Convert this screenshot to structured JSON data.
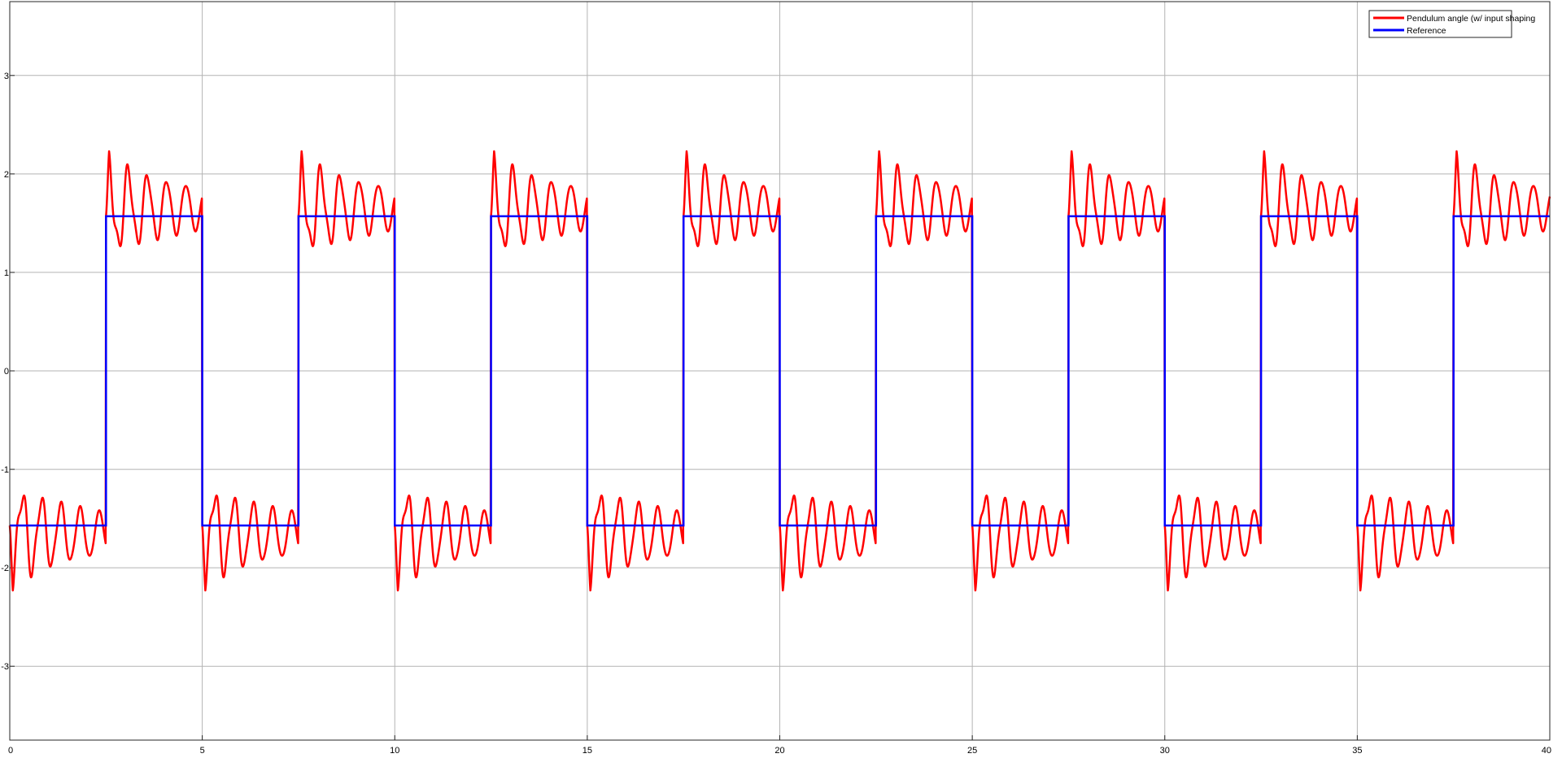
{
  "chart_data": {
    "type": "line",
    "xlim": [
      0,
      40
    ],
    "ylim": [
      -3.75,
      3.75
    ],
    "x_ticks": [
      0,
      5,
      10,
      15,
      20,
      25,
      30,
      35,
      40
    ],
    "y_ticks": [
      -3,
      -2,
      -1,
      0,
      1,
      2,
      3
    ],
    "grid": true,
    "legend_position": "top-right",
    "period": 5,
    "reference_amplitude": 1.5708,
    "series": [
      {
        "name": "Pendulum angle (w/ input shaping",
        "color": "#ff0000",
        "kind": "oscillatory response",
        "overshoot_peak": 0.4,
        "damping": 0.3,
        "oscillation_frequency_hz": 2.0
      },
      {
        "name": "Reference",
        "color": "#0000ff",
        "kind": "square wave",
        "low": -1.5708,
        "high": 1.5708,
        "switch_times": [
          2.5,
          5,
          7.5,
          10,
          12.5,
          15,
          17.5,
          20,
          22.5,
          25,
          27.5,
          30,
          32.5,
          35,
          37.5
        ]
      }
    ]
  }
}
